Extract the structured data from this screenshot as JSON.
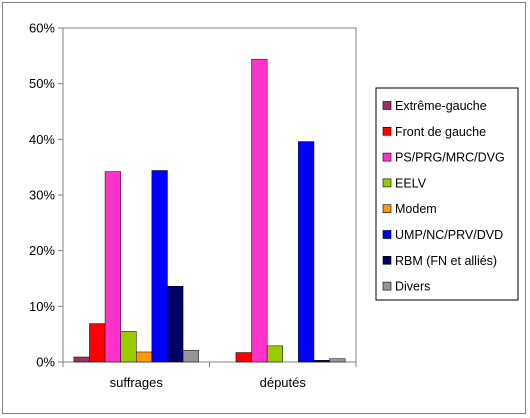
{
  "chart_data": {
    "type": "bar",
    "categories": [
      "suffrages",
      "députés"
    ],
    "ylim": [
      0,
      60
    ],
    "yticks": [
      0,
      10,
      20,
      30,
      40,
      50,
      60
    ],
    "ytick_labels": [
      "0%",
      "10%",
      "20%",
      "30%",
      "40%",
      "50%",
      "60%"
    ],
    "grid": false,
    "legend_position": "right",
    "series": [
      {
        "name": "Extrême-gauche",
        "color": "#993366",
        "values": [
          0.9,
          0.0
        ]
      },
      {
        "name": "Front de gauche",
        "color": "#ff0000",
        "values": [
          6.9,
          1.7
        ]
      },
      {
        "name": "PS/PRG/MRC/DVG",
        "color": "#ff33cc",
        "values": [
          34.2,
          54.4
        ]
      },
      {
        "name": "EELV",
        "color": "#99cc00",
        "values": [
          5.5,
          2.9
        ]
      },
      {
        "name": "Modem",
        "color": "#ff9900",
        "values": [
          1.8,
          0.0
        ]
      },
      {
        "name": "UMP/NC/PRV/DVD",
        "color": "#0000ff",
        "values": [
          34.4,
          39.6
        ]
      },
      {
        "name": "RBM (FN et alliés)",
        "color": "#000066",
        "values": [
          13.6,
          0.3
        ]
      },
      {
        "name": "Divers",
        "color": "#969696",
        "values": [
          2.1,
          0.6
        ]
      }
    ]
  }
}
